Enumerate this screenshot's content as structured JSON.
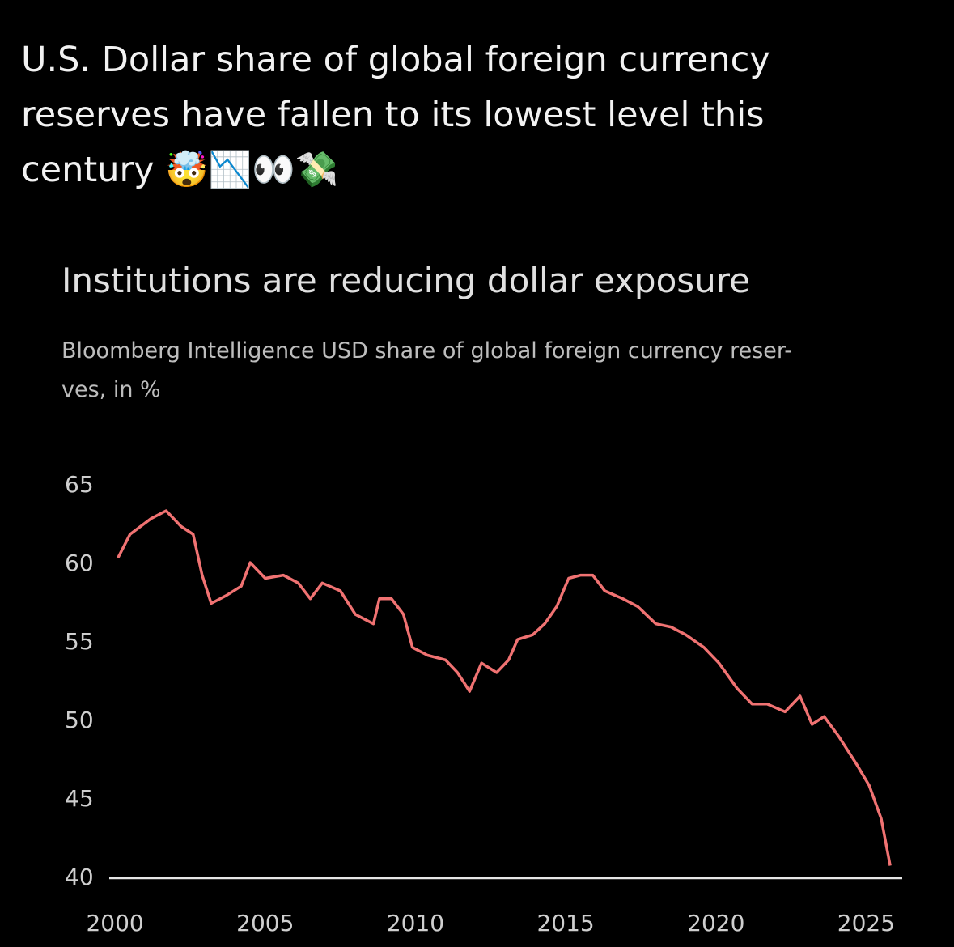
{
  "post": {
    "text": "U.S. Dollar share of global foreign currency\nreserves have fallen to its lowest level this\ncentury 🤯📉👀💸"
  },
  "chart_data": {
    "type": "line",
    "title": "Institutions are reducing dollar exposure",
    "subtitle": "Bloomberg Intelligence USD share of global foreign currency reser-\nves, in %",
    "x": [
      2000.1,
      2000.5,
      2001.2,
      2001.7,
      2002.2,
      2002.6,
      2002.9,
      2003.2,
      2003.7,
      2004.2,
      2004.5,
      2005.0,
      2005.6,
      2006.1,
      2006.5,
      2006.9,
      2007.5,
      2008.0,
      2008.6,
      2008.8,
      2009.2,
      2009.6,
      2009.9,
      2010.4,
      2011.0,
      2011.4,
      2011.8,
      2012.2,
      2012.7,
      2013.1,
      2013.4,
      2013.9,
      2014.3,
      2014.7,
      2015.1,
      2015.5,
      2015.9,
      2016.3,
      2016.9,
      2017.4,
      2018.0,
      2018.5,
      2019.0,
      2019.6,
      2020.1,
      2020.7,
      2021.2,
      2021.7,
      2022.3,
      2022.8,
      2023.2,
      2023.6,
      2024.1,
      2024.7,
      2025.1,
      2025.5,
      2025.8
    ],
    "series": [
      {
        "name": "USD share",
        "color": "#f07272",
        "values": [
          60.4,
          61.9,
          62.9,
          63.4,
          62.4,
          61.9,
          59.3,
          57.5,
          58.0,
          58.6,
          60.1,
          59.1,
          59.3,
          58.8,
          57.8,
          58.8,
          58.3,
          56.8,
          56.2,
          57.8,
          57.8,
          56.8,
          54.7,
          54.2,
          53.9,
          53.1,
          51.9,
          53.7,
          53.1,
          53.9,
          55.2,
          55.5,
          56.2,
          57.3,
          59.1,
          59.3,
          59.3,
          58.3,
          57.8,
          57.3,
          56.2,
          56.0,
          55.5,
          54.7,
          53.7,
          52.1,
          51.1,
          51.1,
          50.6,
          51.6,
          49.8,
          50.3,
          49.0,
          47.2,
          45.9,
          43.8,
          40.8
        ]
      }
    ],
    "xlim": [
      1999,
      2026.2
    ],
    "xticks": [
      2000,
      2005,
      2010,
      2015,
      2020,
      2025
    ],
    "ylim": [
      40,
      65
    ],
    "yticks": [
      40,
      45,
      50,
      55,
      60,
      65
    ],
    "grid": false
  }
}
